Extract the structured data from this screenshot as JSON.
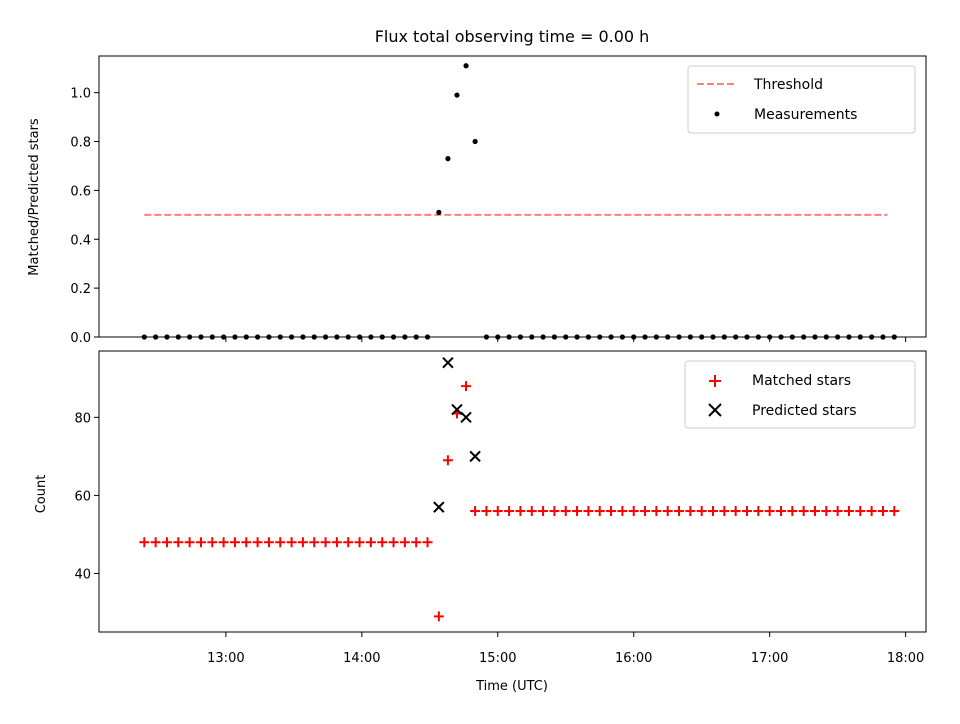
{
  "chart_data": [
    {
      "type": "scatter",
      "title": "Flux total observing time = 0.00 h",
      "xlabel": "",
      "ylabel": "Matched/Predicted stars",
      "xlim": [
        "12:04",
        "18:09"
      ],
      "ylim": [
        0,
        1.15
      ],
      "xticks": [
        "13:00",
        "14:00",
        "15:00",
        "16:00",
        "17:00",
        "18:00"
      ],
      "yticks": [
        0.0,
        0.2,
        0.4,
        0.6,
        0.8,
        1.0
      ],
      "ytick_labels": [
        "0.0",
        "0.2",
        "0.4",
        "0.6",
        "0.8",
        "1.0"
      ],
      "legend_position": "top-right",
      "series": [
        {
          "name": "Threshold",
          "kind": "dashed-line",
          "color": "#ff7f7f",
          "x": [
            "12:24",
            "17:52"
          ],
          "y": [
            0.5,
            0.5
          ]
        },
        {
          "name": "Measurements",
          "kind": "dots",
          "color": "#000000",
          "x": [
            "12:24",
            "12:29",
            "12:34",
            "12:39",
            "12:44",
            "12:49",
            "12:54",
            "12:59",
            "13:04",
            "13:09",
            "13:14",
            "13:19",
            "13:24",
            "13:29",
            "13:34",
            "13:39",
            "13:44",
            "13:49",
            "13:54",
            "13:59",
            "14:04",
            "14:09",
            "14:14",
            "14:19",
            "14:24",
            "14:29",
            "14:34",
            "14:38",
            "14:42",
            "14:46",
            "14:50",
            "14:55",
            "15:00",
            "15:05",
            "15:10",
            "15:15",
            "15:20",
            "15:25",
            "15:30",
            "15:35",
            "15:40",
            "15:45",
            "15:50",
            "15:55",
            "16:00",
            "16:05",
            "16:10",
            "16:15",
            "16:20",
            "16:25",
            "16:30",
            "16:35",
            "16:40",
            "16:45",
            "16:50",
            "16:55",
            "17:00",
            "17:05",
            "17:10",
            "17:15",
            "17:20",
            "17:25",
            "17:30",
            "17:35",
            "17:40",
            "17:45",
            "17:50",
            "17:55"
          ],
          "y": [
            0,
            0,
            0,
            0,
            0,
            0,
            0,
            0,
            0,
            0,
            0,
            0,
            0,
            0,
            0,
            0,
            0,
            0,
            0,
            0,
            0,
            0,
            0,
            0,
            0,
            0,
            0.51,
            0.73,
            0.99,
            1.11,
            0.8,
            0,
            0,
            0,
            0,
            0,
            0,
            0,
            0,
            0,
            0,
            0,
            0,
            0,
            0,
            0,
            0,
            0,
            0,
            0,
            0,
            0,
            0,
            0,
            0,
            0,
            0,
            0,
            0,
            0,
            0,
            0,
            0,
            0,
            0,
            0,
            0,
            0
          ]
        }
      ]
    },
    {
      "type": "scatter",
      "title": "",
      "xlabel": "Time (UTC)",
      "ylabel": "Count",
      "xlim": [
        "12:04",
        "18:09"
      ],
      "ylim": [
        25,
        97
      ],
      "xticks": [
        "13:00",
        "14:00",
        "15:00",
        "16:00",
        "17:00",
        "18:00"
      ],
      "yticks": [
        40,
        60,
        80
      ],
      "legend_position": "top-right",
      "series": [
        {
          "name": "Matched stars",
          "marker": "plus",
          "color": "#ff0000",
          "x": [
            "12:24",
            "12:29",
            "12:34",
            "12:39",
            "12:44",
            "12:49",
            "12:54",
            "12:59",
            "13:04",
            "13:09",
            "13:14",
            "13:19",
            "13:24",
            "13:29",
            "13:34",
            "13:39",
            "13:44",
            "13:49",
            "13:54",
            "13:59",
            "14:04",
            "14:09",
            "14:14",
            "14:19",
            "14:24",
            "14:29",
            "14:34",
            "14:38",
            "14:42",
            "14:46",
            "14:50",
            "14:55",
            "15:00",
            "15:05",
            "15:10",
            "15:15",
            "15:20",
            "15:25",
            "15:30",
            "15:35",
            "15:40",
            "15:45",
            "15:50",
            "15:55",
            "16:00",
            "16:05",
            "16:10",
            "16:15",
            "16:20",
            "16:25",
            "16:30",
            "16:35",
            "16:40",
            "16:45",
            "16:50",
            "16:55",
            "17:00",
            "17:05",
            "17:10",
            "17:15",
            "17:20",
            "17:25",
            "17:30",
            "17:35",
            "17:40",
            "17:45",
            "17:50",
            "17:55"
          ],
          "y": [
            48,
            48,
            48,
            48,
            48,
            48,
            48,
            48,
            48,
            48,
            48,
            48,
            48,
            48,
            48,
            48,
            48,
            48,
            48,
            48,
            48,
            48,
            48,
            48,
            48,
            48,
            29,
            69,
            81,
            88,
            56,
            56,
            56,
            56,
            56,
            56,
            56,
            56,
            56,
            56,
            56,
            56,
            56,
            56,
            56,
            56,
            56,
            56,
            56,
            56,
            56,
            56,
            56,
            56,
            56,
            56,
            56,
            56,
            56,
            56,
            56,
            56,
            56,
            56,
            56,
            56,
            56,
            56
          ]
        },
        {
          "name": "Predicted stars",
          "marker": "x",
          "color": "#000000",
          "x": [
            "14:34",
            "14:38",
            "14:42",
            "14:46",
            "14:50"
          ],
          "y": [
            57,
            94,
            82,
            80,
            70
          ]
        }
      ]
    }
  ]
}
